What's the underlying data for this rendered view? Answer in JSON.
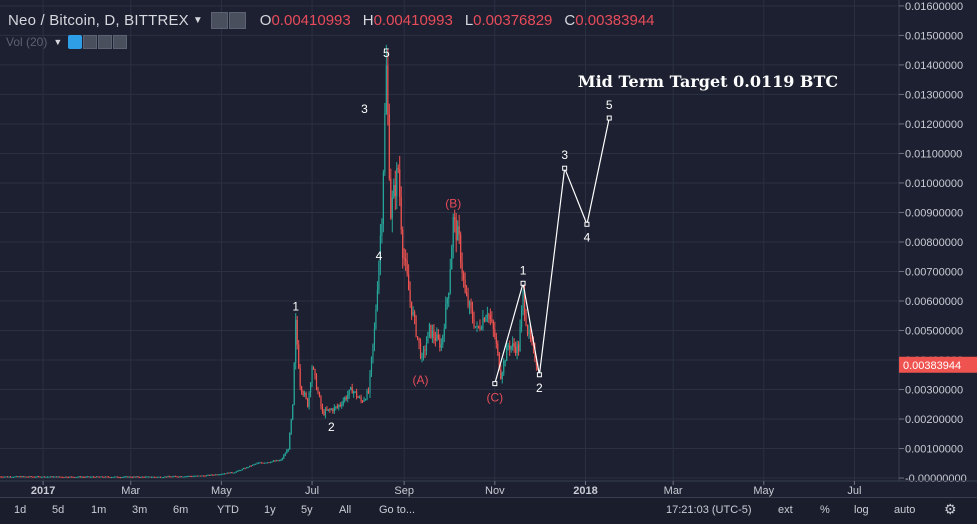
{
  "header": {
    "symbol": "Neo / Bitcoin, D, BITTREX",
    "ohlc": [
      {
        "k": "O",
        "v": "0.00410993"
      },
      {
        "k": "H",
        "v": "0.00410993"
      },
      {
        "k": "L",
        "v": "0.00376829"
      },
      {
        "k": "C",
        "v": "0.00383944"
      }
    ]
  },
  "volume_label": "Vol (20)",
  "price_axis": {
    "ticks": [
      "0.01600000",
      "0.01500000",
      "0.01400000",
      "0.01300000",
      "0.01200000",
      "0.01100000",
      "0.01000000",
      "0.00900000",
      "0.00800000",
      "0.00700000",
      "0.00600000",
      "0.00500000",
      "0.00400000",
      "0.00300000",
      "0.00200000",
      "0.00100000",
      "-0.00000000"
    ],
    "last_price": "0.00383944"
  },
  "time_axis": [
    "2017",
    "Mar",
    "May",
    "Jul",
    "Sep",
    "Nov",
    "2018",
    "Mar",
    "May",
    "Jul"
  ],
  "bottom_bar": {
    "ranges": [
      "1d",
      "5d",
      "1m",
      "3m",
      "6m",
      "YTD",
      "1y",
      "5y",
      "All"
    ],
    "goto": "Go to...",
    "time": "17:21:03 (UTC-5)",
    "ext": "ext",
    "percent": "%",
    "log": "log",
    "auto": "auto"
  },
  "colors": {
    "bg": "#1c2030",
    "up": "#26a69a",
    "down": "#ef5350",
    "grid": "#2b3042",
    "accent": "#2e9ee6",
    "wave_red": "#e84c5a",
    "wave_white": "#ffffff"
  },
  "chart_data": {
    "type": "candlestick",
    "title": "Mid Term Target 0.0119 BTC",
    "ylim": [
      -0.0001,
      0.0162
    ],
    "x_range": [
      "2016-12-03",
      "2018-07-31"
    ],
    "grid": true,
    "price_path": [
      [
        "2016-12-03",
        5e-05
      ],
      [
        "2017-02-01",
        4e-05
      ],
      [
        "2017-03-20",
        4e-05
      ],
      [
        "2017-04-20",
        8e-05
      ],
      [
        "2017-05-10",
        0.0002
      ],
      [
        "2017-05-25",
        0.0005
      ],
      [
        "2017-06-10",
        0.0006
      ],
      [
        "2017-06-15",
        0.001
      ],
      [
        "2017-06-18",
        0.0024
      ],
      [
        "2017-06-20",
        0.0052
      ],
      [
        "2017-06-23",
        0.0032
      ],
      [
        "2017-06-28",
        0.0025
      ],
      [
        "2017-07-01",
        0.0038
      ],
      [
        "2017-07-08",
        0.0022
      ],
      [
        "2017-07-18",
        0.0024
      ],
      [
        "2017-07-28",
        0.003
      ],
      [
        "2017-08-03",
        0.0026
      ],
      [
        "2017-08-08",
        0.0029
      ],
      [
        "2017-08-12",
        0.005
      ],
      [
        "2017-08-17",
        0.009
      ],
      [
        "2017-08-20",
        0.0138
      ],
      [
        "2017-08-23",
        0.009
      ],
      [
        "2017-08-28",
        0.0105
      ],
      [
        "2017-08-31",
        0.0078
      ],
      [
        "2017-09-05",
        0.006
      ],
      [
        "2017-09-13",
        0.004
      ],
      [
        "2017-09-18",
        0.005
      ],
      [
        "2017-09-26",
        0.0045
      ],
      [
        "2017-10-01",
        0.0065
      ],
      [
        "2017-10-04",
        0.0087
      ],
      [
        "2017-10-08",
        0.008
      ],
      [
        "2017-10-12",
        0.0062
      ],
      [
        "2017-10-20",
        0.005
      ],
      [
        "2017-10-27",
        0.0057
      ],
      [
        "2017-11-01",
        0.0048
      ],
      [
        "2017-11-05",
        0.0035
      ],
      [
        "2017-11-10",
        0.0045
      ],
      [
        "2017-11-17",
        0.0044
      ],
      [
        "2017-11-20",
        0.0062
      ],
      [
        "2017-11-23",
        0.005
      ],
      [
        "2017-11-28",
        0.0041
      ],
      [
        "2017-11-30",
        0.0038
      ]
    ],
    "waves": [
      {
        "label": "1",
        "date": "2017-06-20",
        "value": 0.0054,
        "color": "white",
        "pos": "above"
      },
      {
        "label": "2",
        "date": "2017-07-14",
        "value": 0.0022,
        "color": "white",
        "pos": "below"
      },
      {
        "label": "3",
        "date": "2017-08-12",
        "value": 0.0125,
        "color": "white",
        "pos": "beside"
      },
      {
        "label": "4",
        "date": "2017-08-15",
        "value": 0.008,
        "color": "white",
        "pos": "below"
      },
      {
        "label": "5",
        "date": "2017-08-20",
        "value": 0.014,
        "color": "white",
        "pos": "above"
      },
      {
        "label": "(A)",
        "date": "2017-09-12",
        "value": 0.0038,
        "color": "red",
        "pos": "below"
      },
      {
        "label": "(B)",
        "date": "2017-10-04",
        "value": 0.0089,
        "color": "red",
        "pos": "above"
      },
      {
        "label": "(C)",
        "date": "2017-11-01",
        "value": 0.0032,
        "color": "red",
        "pos": "below"
      }
    ],
    "projection": [
      {
        "label": "",
        "date": "2017-11-01",
        "value": 0.0032
      },
      {
        "label": "1",
        "date": "2017-11-20",
        "value": 0.0066
      },
      {
        "label": "2",
        "date": "2017-12-01",
        "value": 0.0035
      },
      {
        "label": "3",
        "date": "2017-12-18",
        "value": 0.0105
      },
      {
        "label": "4",
        "date": "2018-01-02",
        "value": 0.0086
      },
      {
        "label": "5",
        "date": "2018-01-17",
        "value": 0.0122
      }
    ]
  }
}
